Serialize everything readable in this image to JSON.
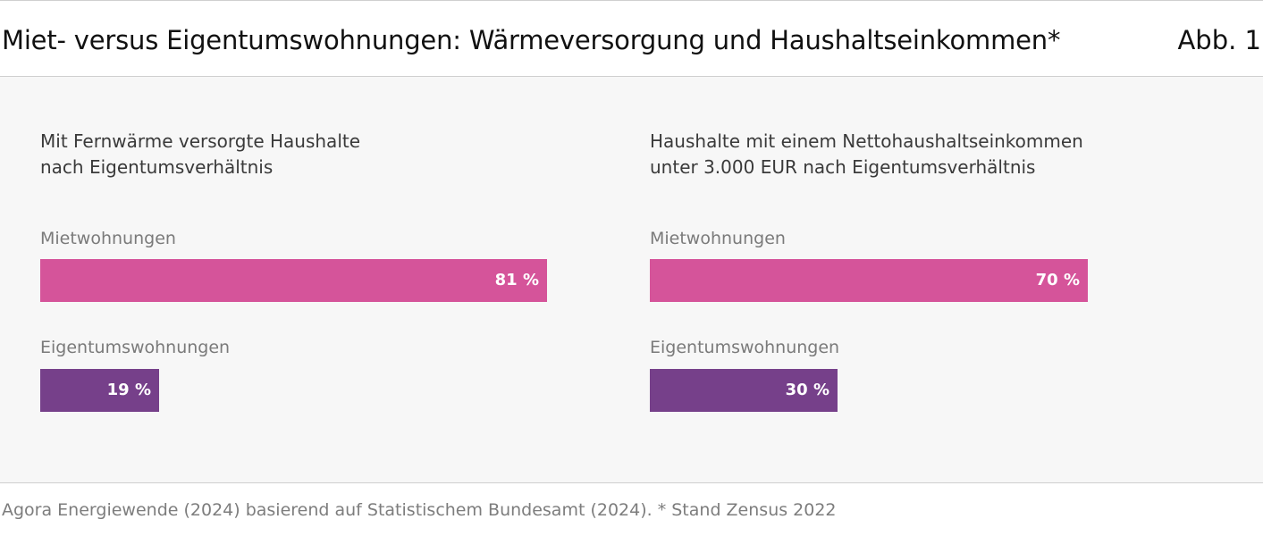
{
  "header": {
    "title": "Miet- versus Eigentumswohnungen: Wärmeversorgung und Haushaltseinkommen*",
    "figure_number": "Abb. 1"
  },
  "colors": {
    "mietwohnungen": "#d5549a",
    "eigentumswohnungen": "#76408a",
    "panel_background": "#f7f7f7"
  },
  "chart_data": [
    {
      "type": "bar",
      "orientation": "horizontal",
      "title_lines": [
        "Mit Fernwärme versorgte Haushalte",
        "nach Eigentumsverhältnis"
      ],
      "categories": [
        "Mietwohnungen",
        "Eigentumswohnungen"
      ],
      "values": [
        81,
        19
      ],
      "value_labels": [
        "81 %",
        "19 %"
      ],
      "unit": "%",
      "xlim": [
        0,
        100
      ],
      "grid": false
    },
    {
      "type": "bar",
      "orientation": "horizontal",
      "title_lines": [
        "Haushalte mit einem Nettohaushaltseinkommen",
        "unter 3.000 EUR nach Eigentumsverhältnis"
      ],
      "categories": [
        "Mietwohnungen",
        "Eigentumswohnungen"
      ],
      "values": [
        70,
        30
      ],
      "value_labels": [
        "70 %",
        "30 %"
      ],
      "unit": "%",
      "xlim": [
        0,
        100
      ],
      "grid": false
    }
  ],
  "footer": {
    "source": "Agora Energiewende (2024) basierend auf Statistischem Bundesamt (2024). * Stand Zensus 2022"
  }
}
